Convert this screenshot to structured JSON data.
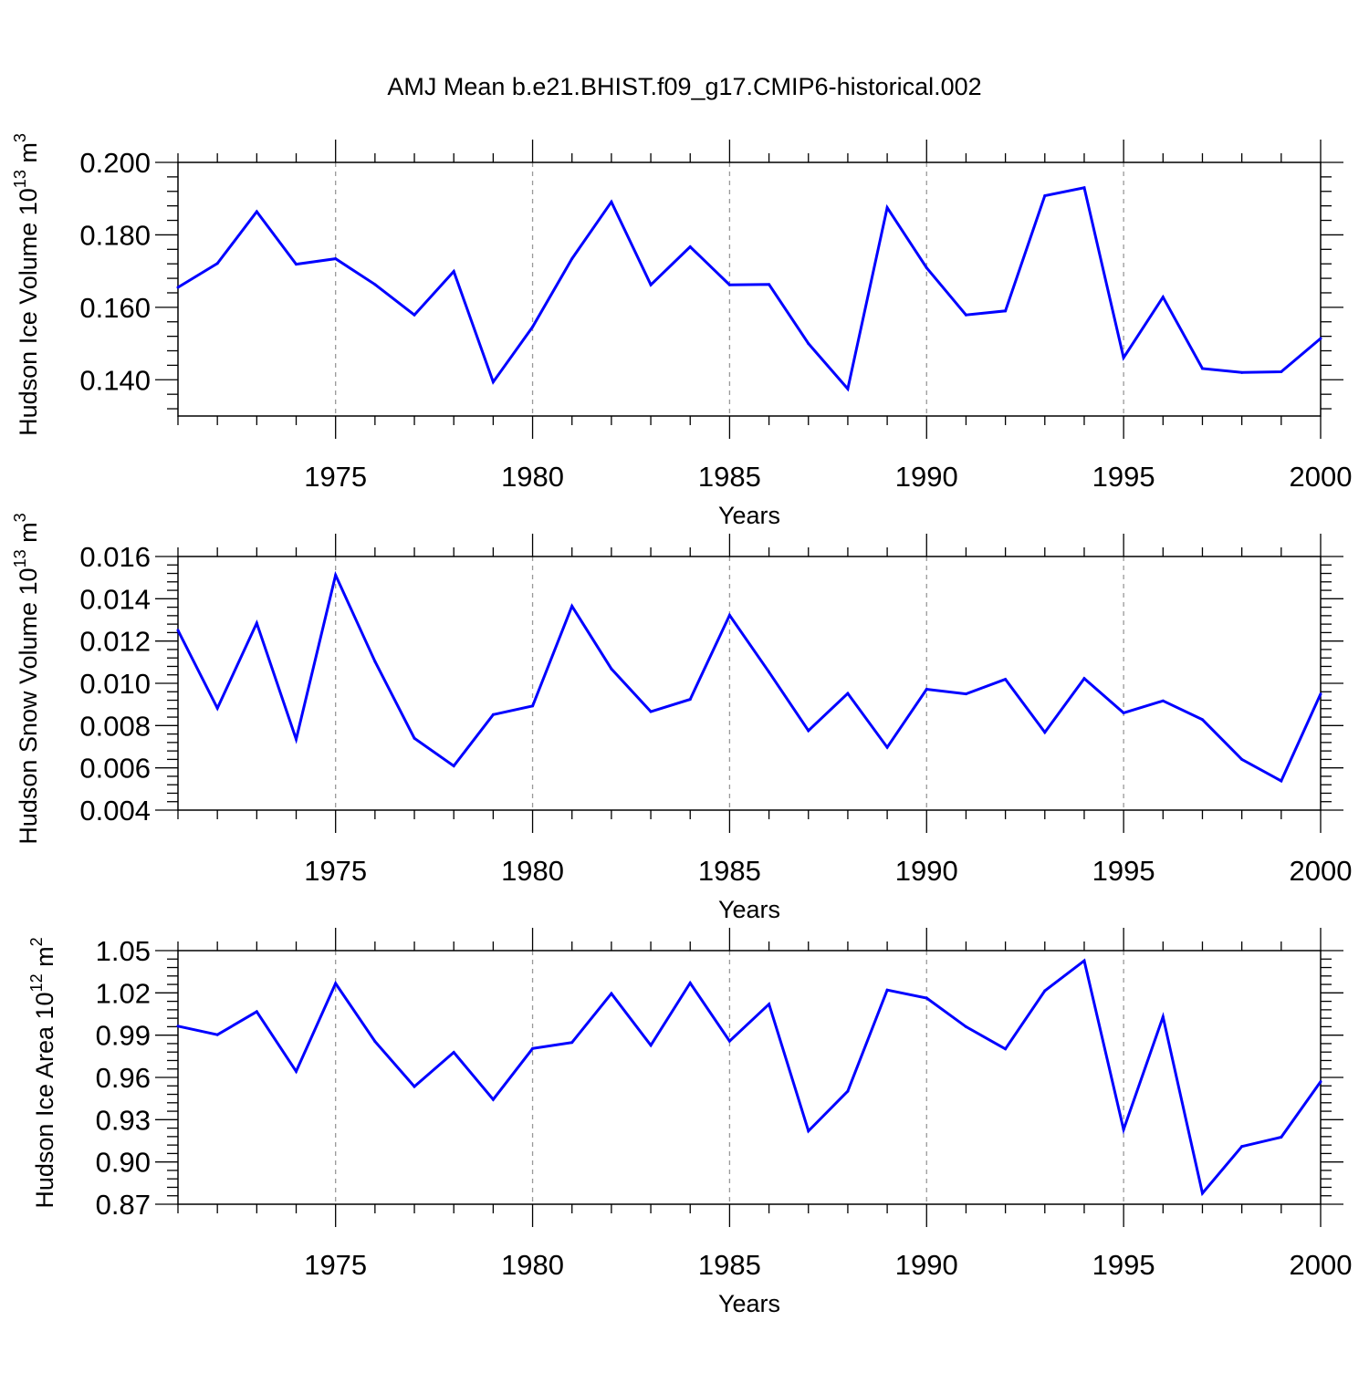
{
  "title": "AMJ Mean b.e21.BHIST.f09_g17.CMIP6-historical.002",
  "colors": {
    "line": "#0000ff",
    "axis": "#000000",
    "grid": "#999999",
    "background": "#ffffff"
  },
  "chart_data": [
    {
      "type": "line",
      "xlabel": "Years",
      "ylabel_main": "Hudson Ice Volume 10",
      "ylabel_exp": "13",
      "ylabel_unit": " m",
      "ylabel_unit_exp": "3",
      "xlim": [
        1971,
        2000
      ],
      "ylim": [
        0.13,
        0.2
      ],
      "x_ticks": [
        "1975",
        "1980",
        "1985",
        "1990",
        "1995",
        "2000"
      ],
      "y_ticks": [
        "0.140",
        "0.160",
        "0.180",
        "0.200"
      ],
      "grid": "vertical dashed at major x ticks",
      "x": [
        1971,
        1972,
        1973,
        1974,
        1975,
        1976,
        1977,
        1978,
        1979,
        1980,
        1981,
        1982,
        1983,
        1984,
        1985,
        1986,
        1987,
        1988,
        1989,
        1990,
        1991,
        1992,
        1993,
        1994,
        1995,
        1996,
        1997,
        1998,
        1999,
        2000
      ],
      "values": [
        0.1655,
        0.1721,
        0.1864,
        0.1719,
        0.1734,
        0.1663,
        0.1579,
        0.1699,
        0.1394,
        0.1546,
        0.1734,
        0.1891,
        0.1662,
        0.1767,
        0.1662,
        0.1663,
        0.15,
        0.1375,
        0.1875,
        0.1709,
        0.1579,
        0.159,
        0.1908,
        0.193,
        0.1461,
        0.1628,
        0.1431,
        0.142,
        0.1422,
        0.1514
      ]
    },
    {
      "type": "line",
      "xlabel": "Years",
      "ylabel_main": "Hudson Snow Volume 10",
      "ylabel_exp": "13",
      "ylabel_unit": " m",
      "ylabel_unit_exp": "3",
      "xlim": [
        1971,
        2000
      ],
      "ylim": [
        0.004,
        0.016
      ],
      "x_ticks": [
        "1975",
        "1980",
        "1985",
        "1990",
        "1995",
        "2000"
      ],
      "y_ticks": [
        "0.004",
        "0.006",
        "0.008",
        "0.010",
        "0.012",
        "0.014",
        "0.016"
      ],
      "grid": "vertical dashed at major x ticks",
      "x": [
        1971,
        1972,
        1973,
        1974,
        1975,
        1976,
        1977,
        1978,
        1979,
        1980,
        1981,
        1982,
        1983,
        1984,
        1985,
        1986,
        1987,
        1988,
        1989,
        1990,
        1991,
        1992,
        1993,
        1994,
        1995,
        1996,
        1997,
        1998,
        1999,
        2000
      ],
      "values": [
        0.01251,
        0.00882,
        0.01285,
        0.00735,
        0.01512,
        0.01103,
        0.0074,
        0.00609,
        0.00852,
        0.00893,
        0.01365,
        0.01068,
        0.00866,
        0.00924,
        0.01322,
        0.01053,
        0.00776,
        0.00952,
        0.00697,
        0.00972,
        0.0095,
        0.01019,
        0.00768,
        0.01023,
        0.0086,
        0.00917,
        0.00828,
        0.0064,
        0.00538,
        0.0095
      ]
    },
    {
      "type": "line",
      "xlabel": "Years",
      "ylabel_main": "Hudson Ice Area 10",
      "ylabel_exp": "12",
      "ylabel_unit": " m",
      "ylabel_unit_exp": "2",
      "xlim": [
        1971,
        2000
      ],
      "ylim": [
        0.87,
        1.05
      ],
      "x_ticks": [
        "1975",
        "1980",
        "1985",
        "1990",
        "1995",
        "2000"
      ],
      "y_ticks": [
        "0.87",
        "0.90",
        "0.93",
        "0.96",
        "0.99",
        "1.02",
        "1.05"
      ],
      "grid": "vertical dashed at major x ticks",
      "x": [
        1971,
        1972,
        1973,
        1974,
        1975,
        1976,
        1977,
        1978,
        1979,
        1980,
        1981,
        1982,
        1983,
        1984,
        1985,
        1986,
        1987,
        1988,
        1989,
        1990,
        1991,
        1992,
        1993,
        1994,
        1995,
        1996,
        1997,
        1998,
        1999,
        2000
      ],
      "values": [
        0.9964,
        0.9903,
        1.0067,
        0.9643,
        1.0267,
        0.9855,
        0.9535,
        0.9778,
        0.9443,
        0.9805,
        0.9848,
        1.0195,
        0.9828,
        1.027,
        0.9858,
        1.012,
        0.922,
        0.9502,
        1.022,
        1.0163,
        0.996,
        0.9802,
        1.0215,
        1.0428,
        0.923,
        1.003,
        0.8778,
        0.911,
        0.9176,
        0.957
      ]
    }
  ]
}
